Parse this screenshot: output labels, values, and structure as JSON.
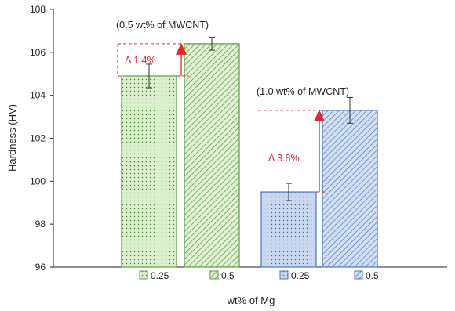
{
  "chart_data": {
    "type": "bar",
    "ylabel": "Hardness (HV)",
    "xlabel": "wt% of Mg",
    "ylim": [
      96,
      108
    ],
    "yticks": [
      96,
      98,
      100,
      102,
      104,
      106,
      108
    ],
    "grid": false,
    "categories": [
      "0.25",
      "0.5",
      "0.25",
      "0.5"
    ],
    "bars": [
      {
        "label": "0.25",
        "value": 104.9,
        "error": 0.55,
        "fill": "#c9e3b6",
        "stroke": "#5a9e3e",
        "pattern": "dots"
      },
      {
        "label": "0.5",
        "value": 106.4,
        "error": 0.3,
        "fill": "#d8ebc9",
        "stroke": "#5a9e3e",
        "pattern": "hatch"
      },
      {
        "label": "0.25",
        "value": 99.5,
        "error": 0.4,
        "fill": "#b6c9ea",
        "stroke": "#4a74c4",
        "pattern": "dots"
      },
      {
        "label": "0.5",
        "value": 103.3,
        "error": 0.6,
        "fill": "#c2d3ef",
        "stroke": "#4a74c4",
        "pattern": "hatch"
      }
    ],
    "annotations": [
      {
        "text": "(0.5 wt% of MWCNT)"
      },
      {
        "text": "(1.0 wt% of MWCNT)"
      }
    ],
    "deltas": [
      {
        "text": "Δ 1.4%",
        "from_bar": 0,
        "to_bar": 1
      },
      {
        "text": "Δ 3.8%",
        "from_bar": 2,
        "to_bar": 3
      }
    ],
    "colors": {
      "arrow": "#e8232a",
      "axis": "#222222"
    }
  }
}
